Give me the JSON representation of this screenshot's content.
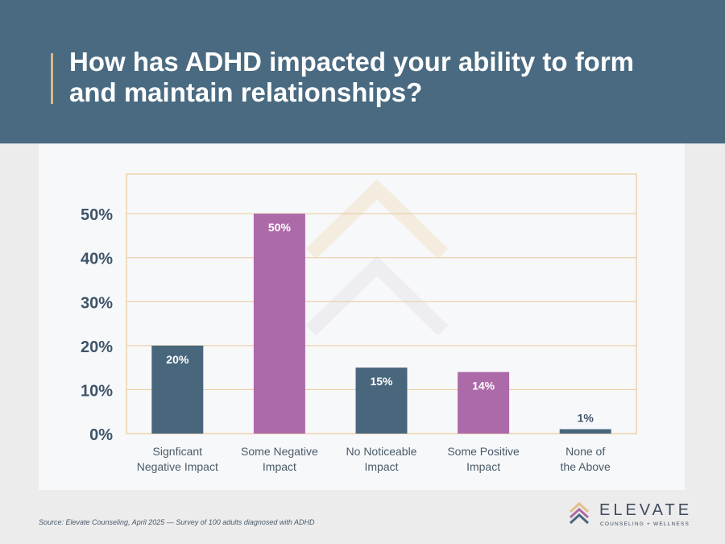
{
  "header": {
    "title": "How has ADHD impacted your ability to form and maintain relationships?"
  },
  "colors": {
    "header_bg": "#496a81",
    "bar_slate": "#48667c",
    "bar_purple": "#ad6aa8",
    "accent_gold": "#e3bf86"
  },
  "chart_data": {
    "type": "bar",
    "categories": [
      [
        "Signficant",
        "Negative Impact"
      ],
      [
        "Some Negative",
        "Impact"
      ],
      [
        "No Noticeable",
        "Impact"
      ],
      [
        "Some Positive",
        "Impact"
      ],
      [
        "None of",
        "the Above"
      ]
    ],
    "values": [
      20,
      50,
      15,
      14,
      1
    ],
    "value_labels": [
      "20%",
      "50%",
      "15%",
      "14%",
      "1%"
    ],
    "bar_colors": [
      "#48667c",
      "#ad6aa8",
      "#48667c",
      "#ad6aa8",
      "#48667c"
    ],
    "y_ticks": [
      "0%",
      "10%",
      "20%",
      "30%",
      "40%",
      "50%"
    ],
    "y_tick_values": [
      0,
      10,
      20,
      30,
      40,
      50
    ],
    "ylim": [
      0,
      59
    ],
    "grid": true
  },
  "footer": {
    "source": "Source: Elevate Counseling, April 2025 — Survey of 100 adults diagnosed with ADHD",
    "logo_word": "ELEVATE",
    "logo_sub": "COUNSELING + WELLNESS",
    "logo_icon": "chevron-up-icon"
  }
}
